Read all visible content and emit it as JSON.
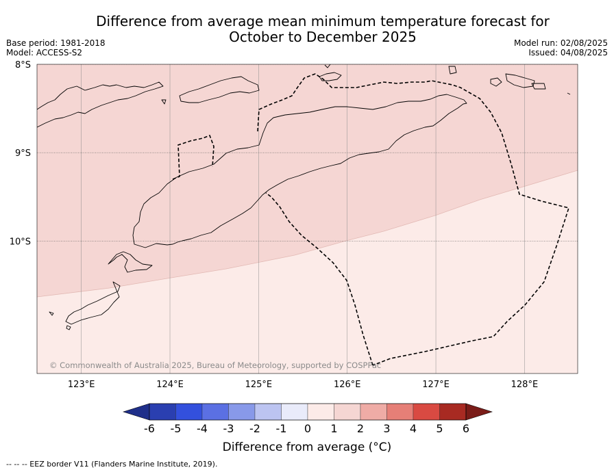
{
  "title": {
    "line1": "Difference from average mean minimum temperature forecast for",
    "line2": "October to December 2025"
  },
  "meta_left": {
    "base_period": "Base period: 1981-2018",
    "model": "Model: ACCESS-S2"
  },
  "meta_right": {
    "model_run": "Model run: 02/08/2025",
    "issued": "Issued: 04/08/2025"
  },
  "map": {
    "lon_range": [
      122.5,
      128.6
    ],
    "lat_range": [
      -11.5,
      -8.0
    ],
    "lat_ticks": [
      {
        "value": -8,
        "label": "8°S"
      },
      {
        "value": -9,
        "label": "9°S"
      },
      {
        "value": -10,
        "label": "10°S"
      }
    ],
    "lon_ticks": [
      {
        "value": 123,
        "label": "123°E"
      },
      {
        "value": 124,
        "label": "124°E"
      },
      {
        "value": 125,
        "label": "125°E"
      },
      {
        "value": 126,
        "label": "126°E"
      },
      {
        "value": 127,
        "label": "127°E"
      },
      {
        "value": 128,
        "label": "128°E"
      }
    ],
    "gridlines": true,
    "regions": [
      {
        "category": "1 to 2",
        "color": "#f5d6d3"
      },
      {
        "category": "0 to 1",
        "color": "#fcebe8"
      }
    ],
    "copyright": "© Commonwealth of Australia 2025, Bureau of Meteorology, supported by COSPPac",
    "eez_border": "dashed"
  },
  "colorbar": {
    "label": "Difference from average (°C)",
    "ticks": [
      "-6",
      "-5",
      "-4",
      "-3",
      "-2",
      "-1",
      "0",
      "1",
      "2",
      "3",
      "4",
      "5",
      "6"
    ],
    "colors": [
      "#1f2f8a",
      "#2a3fb0",
      "#3350dd",
      "#5b70e3",
      "#8899e9",
      "#bcc4f1",
      "#e9ebfa",
      "#fcebe8",
      "#f5d6d3",
      "#efaca6",
      "#e67f77",
      "#d94a42",
      "#a82a22",
      "#7a1c18"
    ]
  },
  "footnote": "--  --  -- EEZ border V11 (Flanders Marine Institute, 2019)."
}
